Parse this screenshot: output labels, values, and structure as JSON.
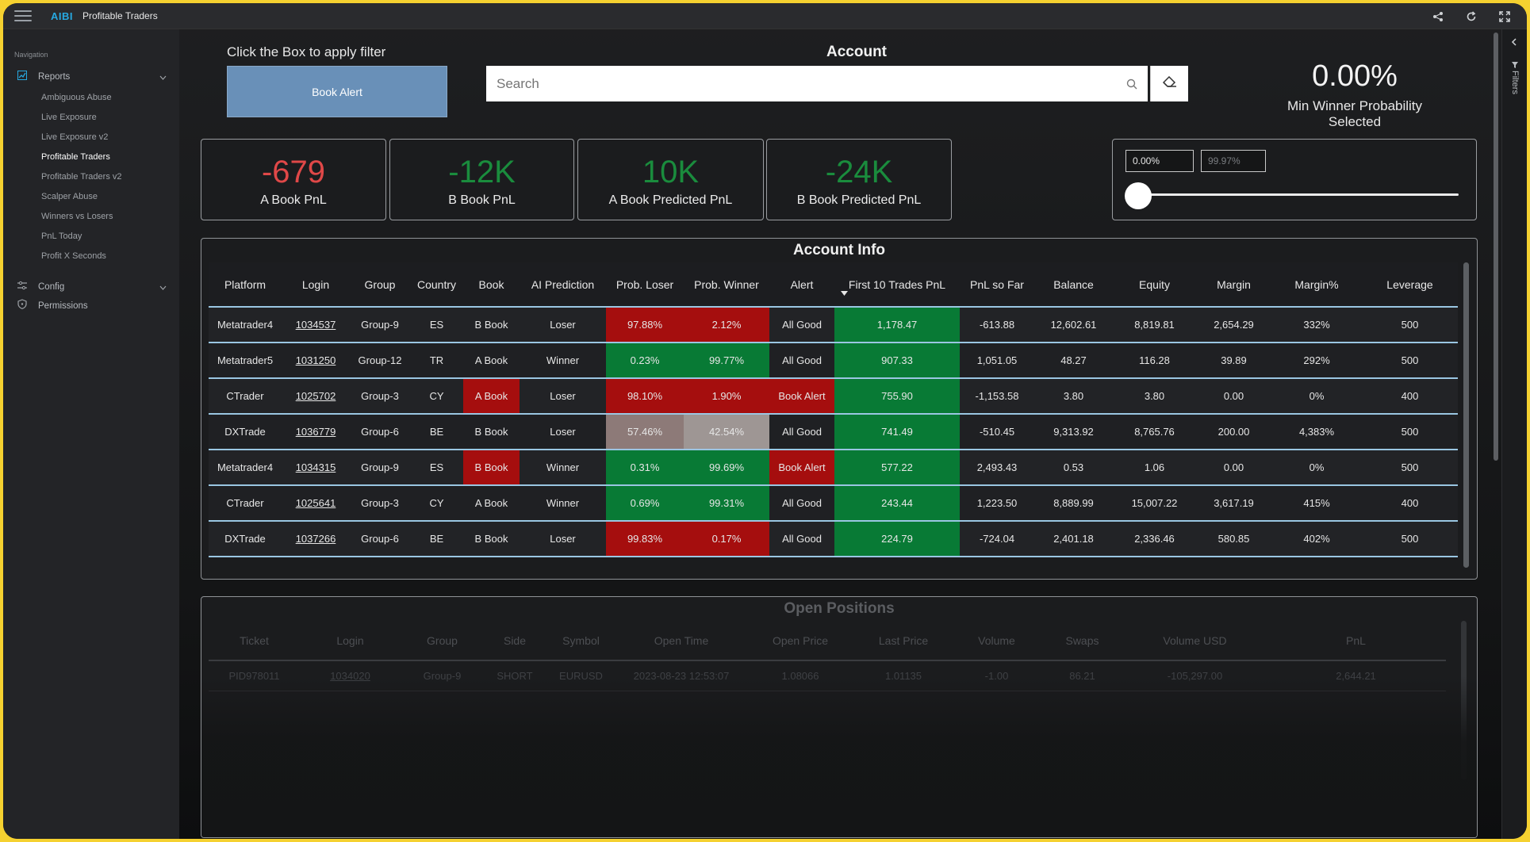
{
  "app": {
    "brand": "AIBI",
    "title": "Profitable Traders"
  },
  "topbar_icons": [
    "share-icon",
    "refresh-icon",
    "fullscreen-icon"
  ],
  "sidebar": {
    "heading": "Navigation",
    "groups": [
      {
        "label": "Reports",
        "icon": "chart-icon"
      },
      {
        "label": "Config",
        "icon": "sliders-icon"
      },
      {
        "label": "Permissions",
        "icon": "shield-icon"
      }
    ],
    "reports": [
      "Ambiguous Abuse",
      "Live Exposure",
      "Live Exposure v2",
      "Profitable Traders",
      "Profitable Traders v2",
      "Scalper Abuse",
      "Winners vs Losers",
      "PnL Today",
      "Profit X Seconds"
    ],
    "active": "Profitable Traders"
  },
  "rail": {
    "label": "Filters"
  },
  "filter": {
    "hint": "Click the Box to apply filter",
    "button": "Book Alert"
  },
  "account": {
    "title": "Account",
    "search_placeholder": "Search"
  },
  "min_winner": {
    "value": "0.00%",
    "label": "Min Winner Probability Selected"
  },
  "kpis": [
    {
      "value": "-679",
      "label": "A Book PnL",
      "color": "#e04848"
    },
    {
      "value": "-12K",
      "label": "B Book PnL",
      "color": "#1a8c3d"
    },
    {
      "value": "10K",
      "label": "A Book Predicted PnL",
      "color": "#1a8c3d"
    },
    {
      "value": "-24K",
      "label": "B Book Predicted PnL",
      "color": "#1a8c3d"
    }
  ],
  "slider": {
    "low": "0.00%",
    "high": "99.97%",
    "position": 0
  },
  "account_info": {
    "title": "Account Info",
    "columns": [
      "Platform",
      "Login",
      "Group",
      "Country",
      "Book",
      "AI Prediction",
      "Prob. Loser",
      "Prob. Winner",
      "Alert",
      "First 10 Trades PnL",
      "PnL so Far",
      "Balance",
      "Equity",
      "Margin",
      "Margin%",
      "Leverage"
    ],
    "rows": [
      [
        "Metatrader4",
        "1034537",
        "Group-9",
        "ES",
        "B Book",
        "Loser",
        "97.88%",
        "2.12%",
        "All Good",
        "1,178.47",
        "-613.88",
        "12,602.61",
        "8,819.81",
        "2,654.29",
        "332%",
        "500"
      ],
      [
        "Metatrader5",
        "1031250",
        "Group-12",
        "TR",
        "A Book",
        "Winner",
        "0.23%",
        "99.77%",
        "All Good",
        "907.33",
        "1,051.05",
        "48.27",
        "116.28",
        "39.89",
        "292%",
        "500"
      ],
      [
        "CTrader",
        "1025702",
        "Group-3",
        "CY",
        "A Book",
        "Loser",
        "98.10%",
        "1.90%",
        "Book Alert",
        "755.90",
        "-1,153.58",
        "3.80",
        "3.80",
        "0.00",
        "0%",
        "400"
      ],
      [
        "DXTrade",
        "1036779",
        "Group-6",
        "BE",
        "B Book",
        "Loser",
        "57.46%",
        "42.54%",
        "All Good",
        "741.49",
        "-510.45",
        "9,313.92",
        "8,765.76",
        "200.00",
        "4,383%",
        "500"
      ],
      [
        "Metatrader4",
        "1034315",
        "Group-9",
        "ES",
        "B Book",
        "Winner",
        "0.31%",
        "99.69%",
        "Book Alert",
        "577.22",
        "2,493.43",
        "0.53",
        "1.06",
        "0.00",
        "0%",
        "500"
      ],
      [
        "CTrader",
        "1025641",
        "Group-3",
        "CY",
        "A Book",
        "Winner",
        "0.69%",
        "99.31%",
        "All Good",
        "243.44",
        "1,223.50",
        "8,889.99",
        "15,007.22",
        "3,617.19",
        "415%",
        "400"
      ],
      [
        "DXTrade",
        "1037266",
        "Group-6",
        "BE",
        "B Book",
        "Loser",
        "99.83%",
        "0.17%",
        "All Good",
        "224.79",
        "-724.04",
        "2,401.18",
        "2,336.46",
        "580.85",
        "402%",
        "500"
      ]
    ]
  },
  "open_positions": {
    "title": "Open Positions",
    "columns": [
      "Ticket",
      "Login",
      "Group",
      "Side",
      "Symbol",
      "Open Time",
      "Open Price",
      "Last Price",
      "Volume",
      "Swaps",
      "Volume USD",
      "PnL"
    ],
    "rows": [
      [
        "PID978011",
        "1034020",
        "Group-9",
        "SHORT",
        "EURUSD",
        "2023-08-23 12:53:07",
        "1.08066",
        "1.01135",
        "-1.00",
        "86.21",
        "-105,297.00",
        "2,644.21"
      ]
    ]
  }
}
